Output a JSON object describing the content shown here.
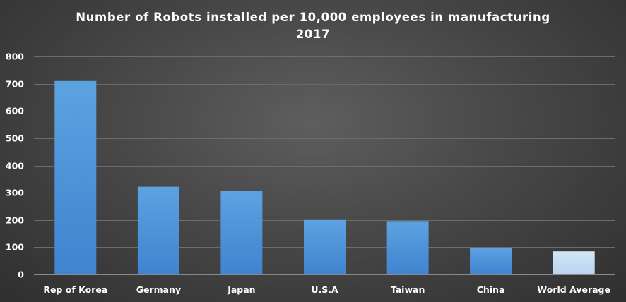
{
  "chart_data": {
    "type": "bar",
    "title": "Number of Robots installed per 10,000 employees in manufacturing",
    "subtitle": "2017",
    "xlabel": "",
    "ylabel": "",
    "categories": [
      "Rep of Korea",
      "Germany",
      "Japan",
      "U.S.A",
      "Taiwan",
      "China",
      "World Average"
    ],
    "values": [
      710,
      322,
      307,
      200,
      196,
      97,
      85
    ],
    "ylim": [
      0,
      800
    ],
    "yticks": [
      0,
      100,
      200,
      300,
      400,
      500,
      600,
      700,
      800
    ],
    "grid": true,
    "legend": "none",
    "colors": {
      "bar_top": "#5da2e0",
      "bar_bottom": "#3f84cf",
      "highlight_top": "#d3e5f7",
      "highlight_bottom": "#b9d4ee",
      "highlight_category": "World Average"
    }
  }
}
